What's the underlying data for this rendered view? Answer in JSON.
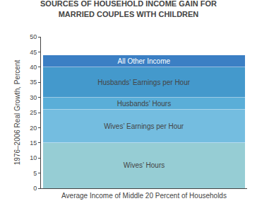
{
  "chart_data": {
    "type": "bar",
    "stacked": true,
    "title": "SOURCES OF HOUSEHOLD INCOME GAIN FOR\nMARRIED COUPLES WITH CHILDREN",
    "xlabel": "Average Income of Middle 20 Percent of Households",
    "ylabel": "1976–2006 Real Growth, Percent",
    "categories": [
      null
    ],
    "series": [
      {
        "name": "Wives’ Hours",
        "color": "#96cdd4",
        "values": [
          15
        ]
      },
      {
        "name": "Wives’ Earnings per Hour",
        "color": "#74bde0",
        "values": [
          11
        ]
      },
      {
        "name": "Husbands’ Hours",
        "color": "#5aaed8",
        "values": [
          4
        ]
      },
      {
        "name": "Husbands’ Earnings per Hour",
        "color": "#4499cc",
        "values": [
          10
        ]
      },
      {
        "name": "All Other Income",
        "color": "#3b7fc4",
        "values": [
          4
        ]
      }
    ],
    "ylim": [
      0,
      50
    ],
    "yticks": [
      0,
      5,
      10,
      15,
      20,
      25,
      30,
      35,
      40,
      45,
      50
    ],
    "grid": false,
    "tick_labels": "y"
  }
}
